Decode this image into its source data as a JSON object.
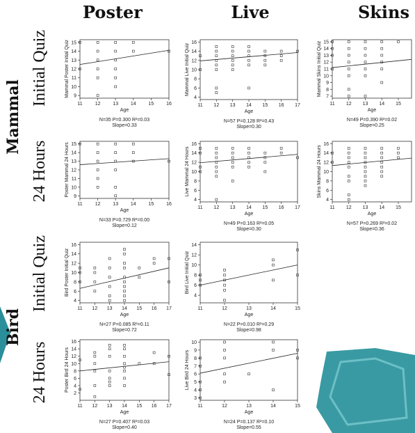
{
  "column_headers": [
    "Poster",
    "Live",
    "Skins"
  ],
  "groups": [
    {
      "label": "Mammal",
      "rows": [
        "Initial Quiz",
        "24 Hours"
      ]
    },
    {
      "label": "Bird",
      "rows": [
        "Initial Quiz",
        "24 Hours"
      ]
    }
  ],
  "chart_data": [
    {
      "type": "scatter",
      "y_label": "Mammal Poster Initial Quiz",
      "x_label": "Age",
      "annotations": [
        "N=35 P=0.300 R²=0.03",
        "Slope=0.33"
      ],
      "x": [
        11,
        11,
        12,
        12,
        12,
        12,
        12,
        12,
        13,
        13,
        13,
        13,
        13,
        13,
        14,
        14,
        16
      ],
      "y": [
        15,
        12,
        15,
        14,
        13,
        12,
        11,
        9,
        15,
        14,
        13,
        12,
        11,
        10,
        15,
        14,
        14
      ],
      "fit_x": [
        11,
        16
      ],
      "fit_y": [
        12.5,
        14.1
      ],
      "xlim": [
        11,
        16
      ],
      "ylim": [
        8.7,
        15.3
      ],
      "xticks": [
        11,
        12,
        13,
        14,
        15,
        16
      ],
      "yticks": [
        9,
        10,
        11,
        12,
        13,
        14,
        15
      ]
    },
    {
      "type": "scatter",
      "y_label": "Mammal Live Initial Quiz",
      "x_label": "Age",
      "annotations": [
        "N=57 P=0.128 R²=0.43",
        "Slope=0.30"
      ],
      "x": [
        11,
        11,
        12,
        12,
        12,
        12,
        12,
        12,
        12,
        12,
        13,
        13,
        13,
        13,
        13,
        13,
        14,
        14,
        14,
        14,
        14,
        14,
        15,
        15,
        15,
        15,
        16,
        16,
        16,
        17
      ],
      "y": [
        10,
        13,
        5,
        6,
        10,
        11,
        12,
        13,
        14,
        15,
        10,
        11,
        12,
        13,
        14,
        15,
        6,
        11,
        12,
        13,
        14,
        15,
        11,
        12,
        13,
        14,
        12,
        13,
        14,
        14
      ],
      "fit_x": [
        11,
        17
      ],
      "fit_y": [
        11.9,
        13.7
      ],
      "xlim": [
        11,
        17
      ],
      "ylim": [
        3.5,
        16.5
      ],
      "xticks": [
        11,
        12,
        13,
        14,
        15,
        16,
        17
      ],
      "yticks": [
        4,
        6,
        8,
        10,
        12,
        14,
        16
      ]
    },
    {
      "type": "scatter",
      "y_label": "Mammal Skins Initial Quiz",
      "x_label": "Age",
      "annotations": [
        "N=49 P=0.390 R²=0.02",
        "Slope=0.25"
      ],
      "x": [
        11,
        11,
        11,
        11,
        12,
        12,
        12,
        12,
        12,
        12,
        12,
        12,
        13,
        13,
        13,
        13,
        13,
        13,
        13,
        14,
        14,
        14,
        14,
        14,
        14,
        15
      ],
      "y": [
        15,
        14,
        13,
        11,
        15,
        14,
        13,
        12,
        11,
        10,
        8,
        7,
        15,
        14,
        13,
        12,
        11,
        10,
        7,
        15,
        14,
        13,
        12,
        11,
        9,
        15
      ],
      "fit_x": [
        11,
        15.8
      ],
      "fit_y": [
        11.2,
        12.4
      ],
      "xlim": [
        11,
        15.8
      ],
      "ylim": [
        6.7,
        15.3
      ],
      "xticks": [
        11,
        12,
        13,
        14,
        15
      ],
      "yticks": [
        7,
        8,
        9,
        10,
        11,
        12,
        13,
        14,
        15
      ]
    },
    {
      "type": "scatter",
      "y_label": "Poster Mammal 24 Hours",
      "x_label": "Age",
      "annotations": [
        "N=33 P=0.729 R²=0.00",
        "Slope=0.12"
      ],
      "x": [
        11,
        12,
        12,
        12,
        12,
        12,
        12,
        13,
        13,
        13,
        13,
        13,
        13,
        14,
        14,
        14,
        16
      ],
      "y": [
        15,
        15,
        14,
        13,
        12,
        11,
        10,
        15,
        14,
        13,
        12,
        10,
        9,
        15,
        14,
        13,
        13
      ],
      "fit_x": [
        11,
        16
      ],
      "fit_y": [
        12.6,
        13.3
      ],
      "xlim": [
        11,
        16
      ],
      "ylim": [
        8.7,
        15.3
      ],
      "xticks": [
        11,
        12,
        13,
        14,
        15,
        16
      ],
      "yticks": [
        9,
        10,
        11,
        12,
        13,
        14,
        15
      ]
    },
    {
      "type": "scatter",
      "y_label": "Live Mammal 24 Hours",
      "x_label": "Age",
      "annotations": [
        "N=49 P=0.163 R²=0.05",
        "Slope=0.30"
      ],
      "x": [
        11,
        11,
        11,
        11,
        12,
        12,
        12,
        12,
        12,
        12,
        12,
        12,
        13,
        13,
        13,
        13,
        13,
        13,
        14,
        14,
        14,
        14,
        14,
        15,
        15,
        15,
        15,
        16,
        16,
        17
      ],
      "y": [
        15,
        14,
        11,
        10,
        15,
        14,
        13,
        12,
        11,
        10,
        9,
        4,
        15,
        14,
        13,
        12,
        11,
        8,
        15,
        14,
        13,
        12,
        11,
        14,
        13,
        12,
        10,
        15,
        14,
        13
      ],
      "fit_x": [
        11,
        17
      ],
      "fit_y": [
        11.9,
        13.7
      ],
      "xlim": [
        11,
        17
      ],
      "ylim": [
        3.5,
        16.5
      ],
      "xticks": [
        11,
        12,
        13,
        14,
        15,
        16,
        17
      ],
      "yticks": [
        4,
        6,
        8,
        10,
        12,
        14,
        16
      ]
    },
    {
      "type": "scatter",
      "y_label": "Skins Mammal 24 Hours",
      "x_label": "Age",
      "annotations": [
        "N=57 P=0.269 R²=0.02",
        "Slope=0.36"
      ],
      "x": [
        11,
        11,
        12,
        12,
        12,
        12,
        12,
        12,
        12,
        12,
        12,
        13,
        13,
        13,
        13,
        13,
        13,
        13,
        13,
        13,
        14,
        14,
        14,
        14,
        14,
        14,
        14,
        15,
        15,
        15
      ],
      "y": [
        14,
        12,
        15,
        14,
        13,
        12,
        11,
        9,
        8,
        5,
        4,
        15,
        14,
        13,
        12,
        11,
        10,
        9,
        8,
        7,
        15,
        14,
        13,
        12,
        11,
        10,
        9,
        15,
        14,
        13
      ],
      "fit_x": [
        11,
        15.8
      ],
      "fit_y": [
        11.3,
        12.9
      ],
      "xlim": [
        11,
        15.8
      ],
      "ylim": [
        3.5,
        16.5
      ],
      "xticks": [
        11,
        12,
        13,
        14,
        15
      ],
      "yticks": [
        4,
        6,
        8,
        10,
        12,
        14,
        16
      ]
    },
    {
      "type": "scatter",
      "y_label": "Bird Poster Initial Quiz",
      "x_label": "Age",
      "annotations": [
        "N=27 P=0.085 R²=0.11",
        "Slope=0.72"
      ],
      "x": [
        11,
        11,
        11,
        12,
        12,
        12,
        12,
        13,
        13,
        13,
        13,
        13,
        13,
        14,
        14,
        14,
        14,
        14,
        14,
        14,
        14,
        14,
        14,
        15,
        15,
        16,
        16,
        17,
        17
      ],
      "y": [
        11,
        10,
        8,
        11,
        10,
        8,
        6,
        13,
        11,
        9,
        7,
        5,
        4,
        15,
        14,
        12,
        11,
        9,
        8,
        7,
        6,
        5,
        4,
        11,
        9,
        13,
        12,
        13,
        8
      ],
      "fit_x": [
        11,
        17
      ],
      "fit_y": [
        6.6,
        11
      ],
      "xlim": [
        11,
        17
      ],
      "ylim": [
        3.5,
        16.5
      ],
      "xticks": [
        11,
        12,
        13,
        14,
        15,
        16,
        17
      ],
      "yticks": [
        4,
        6,
        8,
        10,
        12,
        14,
        16
      ]
    },
    {
      "type": "scatter",
      "y_label": "Bird Live Initial Quiz",
      "x_label": "Age",
      "annotations": [
        "N=22 P=0.010 R²=0.29",
        "Slope=0.98"
      ],
      "x": [
        11,
        11,
        11,
        12,
        12,
        12,
        12,
        12,
        12,
        14,
        14,
        14,
        15,
        15
      ],
      "y": [
        8,
        7,
        6,
        9,
        8,
        7,
        6,
        5,
        3,
        11,
        10,
        7,
        13,
        8
      ],
      "fit_x": [
        11,
        15
      ],
      "fit_y": [
        6.0,
        10.0
      ],
      "xlim": [
        11,
        15
      ],
      "ylim": [
        2.5,
        14.5
      ],
      "xticks": [
        11,
        12,
        13,
        14,
        15
      ],
      "yticks": [
        4,
        6,
        8,
        10,
        12,
        14
      ]
    },
    {
      "type": "scatter",
      "y_label": "Poster Bird 24 Hours",
      "x_label": "Age",
      "annotations": [
        "N=27 P=0.407 R²=0.03",
        "Slope=0.40"
      ],
      "x": [
        11,
        11,
        12,
        12,
        12,
        12,
        12,
        12,
        13,
        13,
        13,
        13,
        13,
        13,
        13,
        14,
        14,
        14,
        14,
        14,
        14,
        14,
        14,
        15,
        16,
        16,
        17,
        17
      ],
      "y": [
        11,
        3,
        13,
        12,
        10,
        8,
        4,
        1,
        15,
        14,
        12,
        8,
        6,
        5,
        4,
        15,
        14,
        12,
        10,
        9,
        8,
        6,
        4,
        10,
        13,
        10,
        12,
        7
      ],
      "fit_x": [
        11,
        17
      ],
      "fit_y": [
        8,
        10.5
      ],
      "xlim": [
        11,
        17
      ],
      "ylim": [
        0,
        16.5
      ],
      "xticks": [
        11,
        12,
        13,
        14,
        15,
        16,
        17
      ],
      "yticks": [
        2,
        4,
        6,
        8,
        10,
        12,
        14,
        16
      ]
    },
    {
      "type": "scatter",
      "y_label": "Live Bird 24 Hours",
      "x_label": "Age",
      "annotations": [
        "N=24 P=0.137 R²=0.10",
        "Slope=0.55"
      ],
      "x": [
        11,
        11,
        11,
        11,
        11,
        12,
        12,
        12,
        12,
        12,
        13,
        14,
        14,
        14,
        15,
        15
      ],
      "y": [
        8,
        7,
        5,
        4,
        3,
        10,
        9,
        8,
        6,
        5,
        6,
        10,
        9,
        4,
        9,
        8
      ],
      "fit_x": [
        11,
        15
      ],
      "fit_y": [
        6.1,
        8.6
      ],
      "xlim": [
        11,
        15
      ],
      "ylim": [
        2.7,
        10.3
      ],
      "xticks": [
        11,
        12,
        13,
        14,
        15
      ],
      "yticks": [
        3,
        4,
        5,
        6,
        7,
        8,
        9,
        10
      ]
    }
  ]
}
